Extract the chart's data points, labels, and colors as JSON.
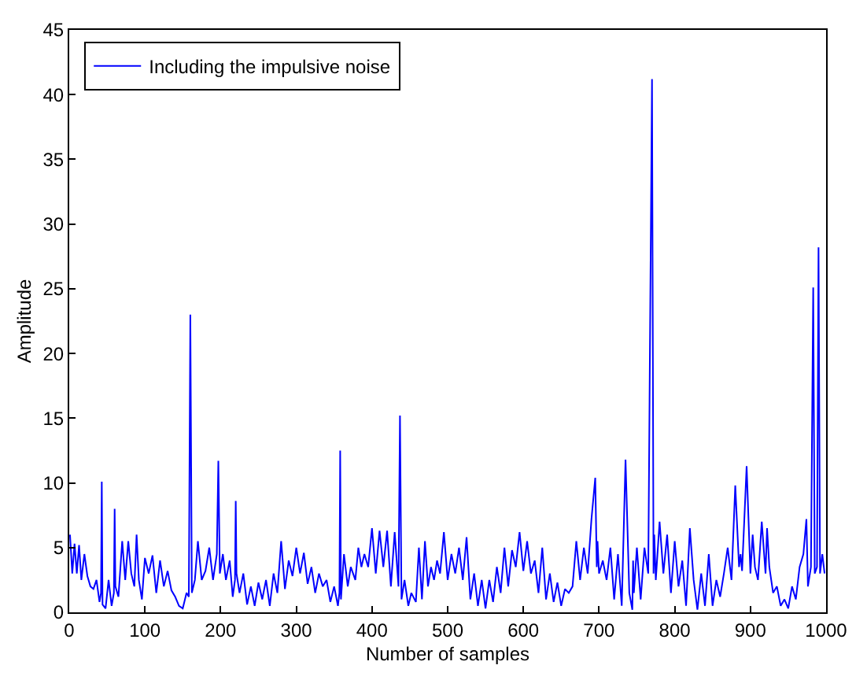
{
  "chart_data": {
    "type": "line",
    "xlabel": "Number of samples",
    "ylabel": "Amplitude",
    "xlim": [
      0,
      1000
    ],
    "ylim": [
      0,
      45
    ],
    "xticks": [
      0,
      100,
      200,
      300,
      400,
      500,
      600,
      700,
      800,
      900,
      1000
    ],
    "yticks": [
      0,
      5,
      10,
      15,
      20,
      25,
      30,
      35,
      40,
      45
    ],
    "legend": "top left",
    "grid": false,
    "marker": "none",
    "line_style": "solid",
    "series": [
      {
        "name": "Including the impulsive noise",
        "color": "#0000ff",
        "x": [
          1,
          4,
          7,
          10,
          13,
          16,
          20,
          24,
          28,
          32,
          36,
          40,
          42,
          43,
          44,
          48,
          52,
          56,
          59,
          60,
          61,
          65,
          70,
          74,
          78,
          82,
          86,
          89,
          92,
          96,
          100,
          105,
          110,
          115,
          120,
          125,
          130,
          135,
          140,
          145,
          150,
          155,
          158,
          160,
          162,
          166,
          170,
          175,
          180,
          185,
          190,
          195,
          197,
          199,
          203,
          207,
          212,
          216,
          219,
          220,
          221,
          225,
          230,
          235,
          240,
          245,
          250,
          255,
          260,
          265,
          270,
          275,
          280,
          285,
          290,
          295,
          300,
          305,
          310,
          315,
          320,
          325,
          330,
          335,
          340,
          345,
          350,
          355,
          357,
          358,
          359,
          363,
          368,
          372,
          378,
          382,
          386,
          390,
          395,
          400,
          405,
          410,
          415,
          420,
          425,
          430,
          435,
          437,
          439,
          443,
          448,
          452,
          458,
          462,
          466,
          470,
          474,
          478,
          482,
          486,
          490,
          495,
          500,
          505,
          510,
          515,
          520,
          525,
          530,
          535,
          540,
          545,
          550,
          555,
          560,
          565,
          570,
          575,
          580,
          585,
          590,
          595,
          600,
          605,
          610,
          615,
          620,
          625,
          630,
          635,
          640,
          645,
          650,
          655,
          660,
          665,
          670,
          675,
          680,
          685,
          690,
          695,
          697,
          698,
          700,
          705,
          710,
          715,
          720,
          725,
          730,
          735,
          740,
          744,
          745,
          746,
          750,
          755,
          760,
          765,
          770,
          772,
          773,
          775,
          780,
          785,
          790,
          795,
          800,
          805,
          810,
          815,
          820,
          825,
          830,
          835,
          840,
          845,
          850,
          855,
          860,
          865,
          870,
          875,
          880,
          885,
          887,
          889,
          895,
          900,
          903,
          906,
          910,
          915,
          920,
          922,
          925,
          930,
          935,
          940,
          945,
          950,
          955,
          960,
          965,
          970,
          974,
          976,
          980,
          983,
          985,
          988,
          990,
          992,
          995,
          998
        ],
        "values": [
          6,
          3,
          5.3,
          3,
          5.2,
          2.5,
          4.5,
          2.8,
          2,
          1.8,
          2.5,
          0.8,
          1.5,
          10.1,
          0.6,
          0.3,
          2.5,
          0.5,
          1.5,
          8,
          2,
          1.2,
          5.5,
          2.5,
          5.5,
          3,
          2,
          6,
          2.5,
          1,
          4.2,
          3,
          4.4,
          1.5,
          4,
          2,
          3.2,
          1.7,
          1.2,
          0.5,
          0.3,
          1.5,
          1.2,
          23,
          1.5,
          2.5,
          5.5,
          2.5,
          3.2,
          5,
          2.5,
          4.5,
          11.7,
          3,
          4.5,
          2.5,
          4,
          1.2,
          2.5,
          8.6,
          3,
          1.5,
          3,
          0.6,
          2,
          0.5,
          2.3,
          1,
          2.5,
          0.5,
          3,
          1.5,
          5.5,
          1.8,
          4,
          2.8,
          5,
          3,
          4.6,
          2.2,
          3.5,
          1.5,
          3,
          2,
          2.5,
          0.8,
          2,
          0.5,
          1.5,
          12.5,
          1,
          4.5,
          2,
          3.5,
          2.5,
          5,
          3.5,
          4.5,
          3.5,
          6.5,
          3,
          6.3,
          3.5,
          6.3,
          2,
          6.2,
          2,
          15.2,
          1,
          2.5,
          0.5,
          1.5,
          0.8,
          5,
          1,
          5.5,
          2,
          3.5,
          2.5,
          4,
          3,
          6.2,
          2.5,
          4.5,
          3,
          5,
          2.5,
          5.8,
          1,
          3,
          0.5,
          2.5,
          0.3,
          2.5,
          0.8,
          3.5,
          1.5,
          5,
          2,
          4.8,
          3.5,
          6.2,
          3.2,
          5.5,
          3,
          4,
          1.5,
          5,
          1,
          3,
          0.8,
          2.3,
          0.5,
          1.8,
          1.5,
          2,
          5.5,
          2.5,
          5,
          3,
          7.2,
          10.4,
          3.5,
          5.5,
          3,
          4,
          2.5,
          5,
          1,
          4.5,
          0.5,
          11.8,
          1.5,
          0.2,
          4,
          1.5,
          5,
          1,
          5,
          3,
          41.2,
          3,
          6,
          2.5,
          7,
          3,
          6,
          1.5,
          5.5,
          2,
          4,
          0.5,
          6.5,
          2.5,
          0.2,
          3,
          0.5,
          4.5,
          0.5,
          2.5,
          1.2,
          3,
          5,
          2.5,
          9.8,
          3.5,
          4.5,
          3.2,
          11.3,
          3,
          6,
          3.5,
          2.5,
          7,
          3,
          6.5,
          3.5,
          1.5,
          2,
          0.5,
          1,
          0.3,
          2,
          1,
          3.5,
          4.5,
          7.2,
          2,
          3.5,
          25.1,
          3,
          3.5,
          28.2,
          3,
          4.5,
          3
        ]
      }
    ]
  }
}
